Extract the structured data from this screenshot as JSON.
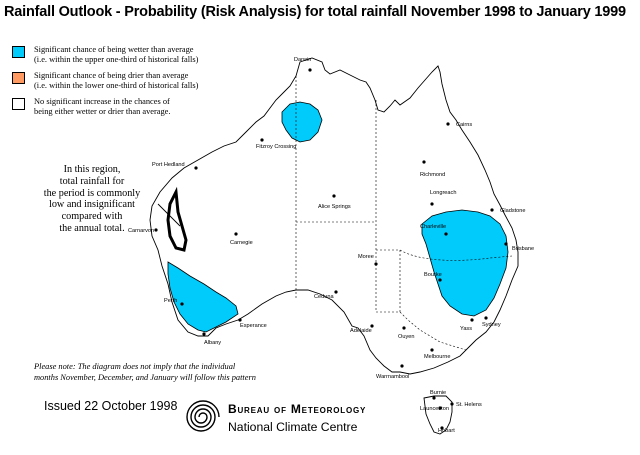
{
  "title": "Rainfall Outlook - Probability (Risk Analysis) for total rainfall November 1998 to January 1999",
  "colors": {
    "wetter": "#00cbfb",
    "drier": "#ff9a63",
    "neutral": "#ffffff",
    "outline": "#000000"
  },
  "legend": [
    {
      "color": "#00cbfb",
      "line1": "Significant chance of being wetter than average",
      "line2": "(i.e. within the upper one-third of historical falls)"
    },
    {
      "color": "#ff9a63",
      "line1": "Significant chance of being drier than average",
      "line2": "(i.e. within the lower one-third of historical falls)"
    },
    {
      "color": "#ffffff",
      "line1": "No significant increase in the chances of",
      "line2": "being either wetter or drier than average."
    }
  ],
  "region_note": [
    "In this region,",
    "total rainfall for",
    "the period is commonly",
    "low and insignificant",
    "compared with",
    "the annual total."
  ],
  "note": [
    "Please note: The diagram does not imply that the individual",
    "months November, December, and January will follow this pattern"
  ],
  "issued": "Issued 22 October 1998",
  "agency": {
    "name": "Bureau of Meteorology",
    "centre": "National Climate Centre"
  },
  "towns": {
    "darwin": "Darwin",
    "cairns": "Cairns",
    "halls_creek": "Fitzroy Crossing",
    "port_hedland": "Port Hedland",
    "richmond": "Richmond",
    "longreach": "Longreach",
    "gladstone": "Gladstone",
    "alice_springs": "Alice Springs",
    "carnarvon": "Carnarvon",
    "carnegie": "Carnegie",
    "charleville": "Charleville",
    "brisbane": "Brisbane",
    "moree": "Moree",
    "bourke": "Bourke",
    "perth": "Perth",
    "ceduna": "Ceduna",
    "esperance": "Esperance",
    "albany": "Albany",
    "adelaide": "Adelaide",
    "ouyen": "Ouyen",
    "yass": "Yass",
    "sydney": "Sydney",
    "melbourne": "Melbourne",
    "warrnambool": "Warrnambool",
    "burnie": "Burnie",
    "launceston": "Launceston",
    "st_helens": "St. Helens",
    "hobart": "Hobart"
  }
}
